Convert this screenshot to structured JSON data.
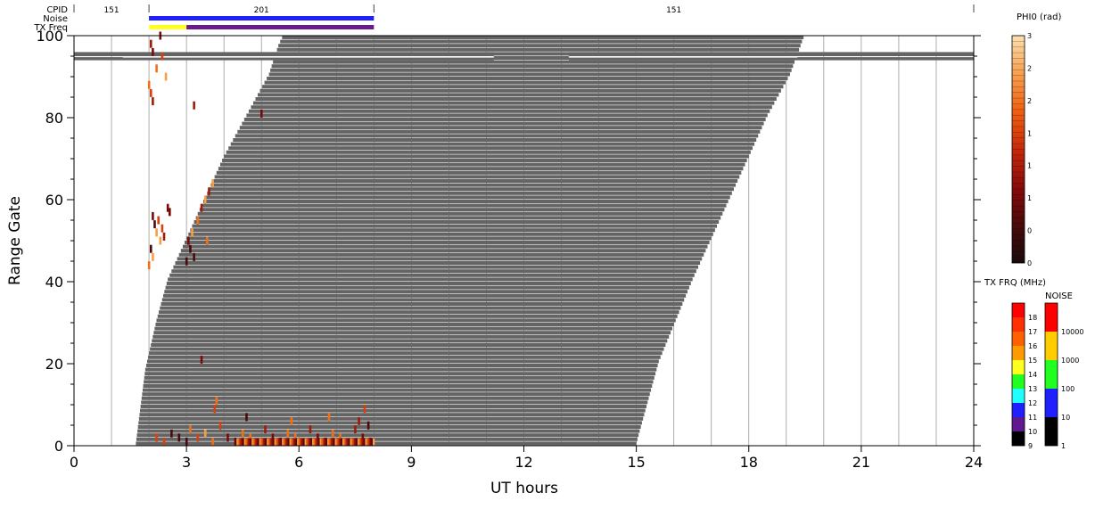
{
  "header": {
    "cpid_label": "CPID",
    "noise_label": "Noise",
    "txfreq_label": "TX Freq",
    "cpid_segments": [
      {
        "start": 0,
        "end": 2,
        "label": "151"
      },
      {
        "start": 2,
        "end": 8,
        "label": "201"
      },
      {
        "start": 8,
        "end": 24,
        "label": "151"
      }
    ],
    "noise_bar": {
      "start": 2,
      "end": 8,
      "color": "#2020ff"
    },
    "txfreq_bar": [
      {
        "start": 2,
        "end": 3,
        "color": "#ffff20"
      },
      {
        "start": 3,
        "end": 8,
        "color": "#6a1a8a"
      }
    ]
  },
  "chart_data": {
    "type": "heatmap",
    "xlabel": "UT hours",
    "ylabel": "Range Gate",
    "xlim": [
      0,
      24
    ],
    "ylim": [
      0,
      100
    ],
    "x_ticks": [
      0,
      3,
      6,
      9,
      12,
      15,
      18,
      21,
      24
    ],
    "y_ticks": [
      0,
      20,
      40,
      60,
      80,
      100
    ],
    "vertical_grid_hours": [
      1,
      2,
      3,
      4,
      5,
      6,
      7,
      8,
      9,
      10,
      11,
      12,
      13,
      14,
      15,
      16,
      17,
      18,
      19,
      20,
      21,
      22,
      23
    ],
    "ground_scatter": {
      "color": "#646464",
      "bottom_edge": [
        [
          1.65,
          0
        ],
        [
          1.9,
          18
        ],
        [
          2.2,
          30
        ],
        [
          2.5,
          40
        ],
        [
          3.0,
          50
        ],
        [
          3.5,
          60
        ],
        [
          4.0,
          70
        ],
        [
          4.6,
          80
        ],
        [
          5.2,
          90
        ],
        [
          5.45,
          97
        ],
        [
          5.6,
          100
        ]
      ],
      "top_edge": [
        [
          15.0,
          0
        ],
        [
          15.6,
          20
        ],
        [
          16.5,
          40
        ],
        [
          17.5,
          60
        ],
        [
          18.5,
          80
        ],
        [
          19.1,
          90
        ],
        [
          19.5,
          100
        ]
      ],
      "band": {
        "gate_low": 94,
        "gate_high": 96,
        "gaps": [
          [
            11.2,
            13.2
          ]
        ],
        "left_start": 0,
        "right_end": 24
      }
    },
    "phi0_points": [
      [
        2.05,
        98
      ],
      [
        2.1,
        96
      ],
      [
        2.2,
        92
      ],
      [
        2.3,
        100
      ],
      [
        2.35,
        95
      ],
      [
        2.45,
        90
      ],
      [
        2.0,
        88
      ],
      [
        2.05,
        86
      ],
      [
        2.1,
        84
      ],
      [
        3.2,
        83
      ],
      [
        5.0,
        81
      ],
      [
        2.1,
        56
      ],
      [
        2.15,
        54
      ],
      [
        2.2,
        52
      ],
      [
        2.25,
        55
      ],
      [
        2.3,
        50
      ],
      [
        2.35,
        53
      ],
      [
        2.4,
        51
      ],
      [
        2.05,
        48
      ],
      [
        2.1,
        46
      ],
      [
        2.0,
        44
      ],
      [
        2.5,
        58
      ],
      [
        2.55,
        57
      ],
      [
        3.05,
        50
      ],
      [
        3.1,
        48
      ],
      [
        3.15,
        52
      ],
      [
        3.2,
        46
      ],
      [
        3.3,
        55
      ],
      [
        3.4,
        58
      ],
      [
        3.5,
        60
      ],
      [
        3.6,
        62
      ],
      [
        3.7,
        64
      ],
      [
        3.55,
        50
      ],
      [
        3.0,
        45
      ],
      [
        3.4,
        21
      ],
      [
        3.8,
        11
      ],
      [
        3.75,
        9
      ],
      [
        2.2,
        2
      ],
      [
        2.4,
        1
      ],
      [
        2.6,
        3
      ],
      [
        2.8,
        2
      ],
      [
        3.0,
        1
      ],
      [
        3.1,
        4
      ],
      [
        3.3,
        2
      ],
      [
        3.5,
        3
      ],
      [
        3.7,
        1
      ],
      [
        3.9,
        5
      ],
      [
        4.1,
        2
      ],
      [
        4.3,
        1
      ],
      [
        4.5,
        3
      ],
      [
        4.7,
        2
      ],
      [
        4.9,
        1
      ],
      [
        5.1,
        4
      ],
      [
        5.3,
        2
      ],
      [
        5.5,
        1
      ],
      [
        5.7,
        3
      ],
      [
        5.9,
        2
      ],
      [
        6.1,
        1
      ],
      [
        6.3,
        4
      ],
      [
        6.5,
        2
      ],
      [
        6.7,
        1
      ],
      [
        6.9,
        3
      ],
      [
        7.1,
        2
      ],
      [
        7.3,
        1
      ],
      [
        7.5,
        4
      ],
      [
        7.7,
        2
      ],
      [
        7.9,
        1
      ],
      [
        7.85,
        5
      ],
      [
        7.6,
        6
      ],
      [
        6.8,
        7
      ],
      [
        5.8,
        6
      ],
      [
        4.6,
        7
      ],
      [
        7.75,
        9
      ]
    ],
    "phi0_colorbar": {
      "title": "PHI0 (rad)",
      "range": [
        0,
        3
      ],
      "tick_labels": [
        "0",
        "0",
        "1",
        "1",
        "1",
        "2",
        "2",
        "3"
      ],
      "stops": [
        "#1a0a0a",
        "#4a0a0a",
        "#8a0a0a",
        "#c82a0a",
        "#f06010",
        "#f8a050",
        "#fce0b0"
      ]
    },
    "txfrq_colorbar": {
      "title": "TX FRQ (MHz)",
      "labels": [
        "9",
        "10",
        "11",
        "12",
        "13",
        "14",
        "15",
        "16",
        "17",
        "18"
      ],
      "colors": [
        "#000000",
        "#601890",
        "#2020ff",
        "#20ffff",
        "#20ff20",
        "#ffff20",
        "#ff9a00",
        "#ff6000",
        "#ff3000",
        "#ff0000"
      ]
    },
    "noise_colorbar": {
      "title": "NOISE",
      "labels": [
        "1",
        "10",
        "100",
        "1000",
        "10000"
      ],
      "colors": [
        "#000000",
        "#2020ff",
        "#20ff20",
        "#ffcc00",
        "#ff0000"
      ]
    }
  }
}
